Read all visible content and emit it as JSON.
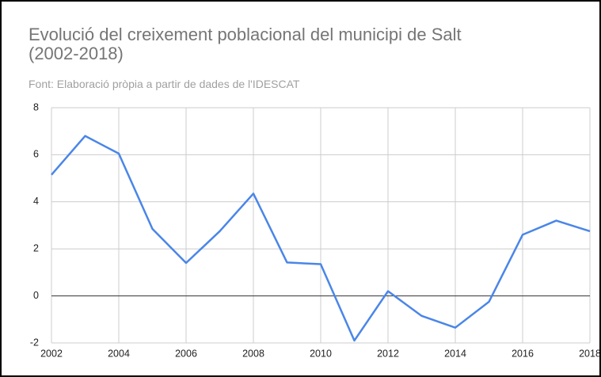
{
  "chart_data": {
    "type": "line",
    "title": "Evolució del creixement poblacional del municipi de Salt (2002-2018)",
    "subtitle": "Font: Elaboració pròpia a partir de dades de l'IDESCAT",
    "x": [
      2002,
      2003,
      2004,
      2005,
      2006,
      2007,
      2008,
      2009,
      2010,
      2011,
      2012,
      2013,
      2014,
      2015,
      2016,
      2017,
      2018
    ],
    "series": [
      {
        "color": "#4a86e8",
        "values": [
          5.15,
          6.8,
          6.05,
          2.85,
          1.4,
          2.75,
          4.35,
          1.42,
          1.35,
          -1.9,
          0.2,
          -0.85,
          -1.35,
          -0.25,
          2.6,
          3.2,
          2.75
        ]
      }
    ],
    "xlim": [
      2002,
      2018
    ],
    "xticks": [
      2002,
      2004,
      2006,
      2008,
      2010,
      2012,
      2014,
      2016,
      2018
    ],
    "ylim": [
      -2,
      8
    ],
    "yticks": [
      -2,
      0,
      2,
      4,
      6,
      8
    ],
    "grid": true
  }
}
